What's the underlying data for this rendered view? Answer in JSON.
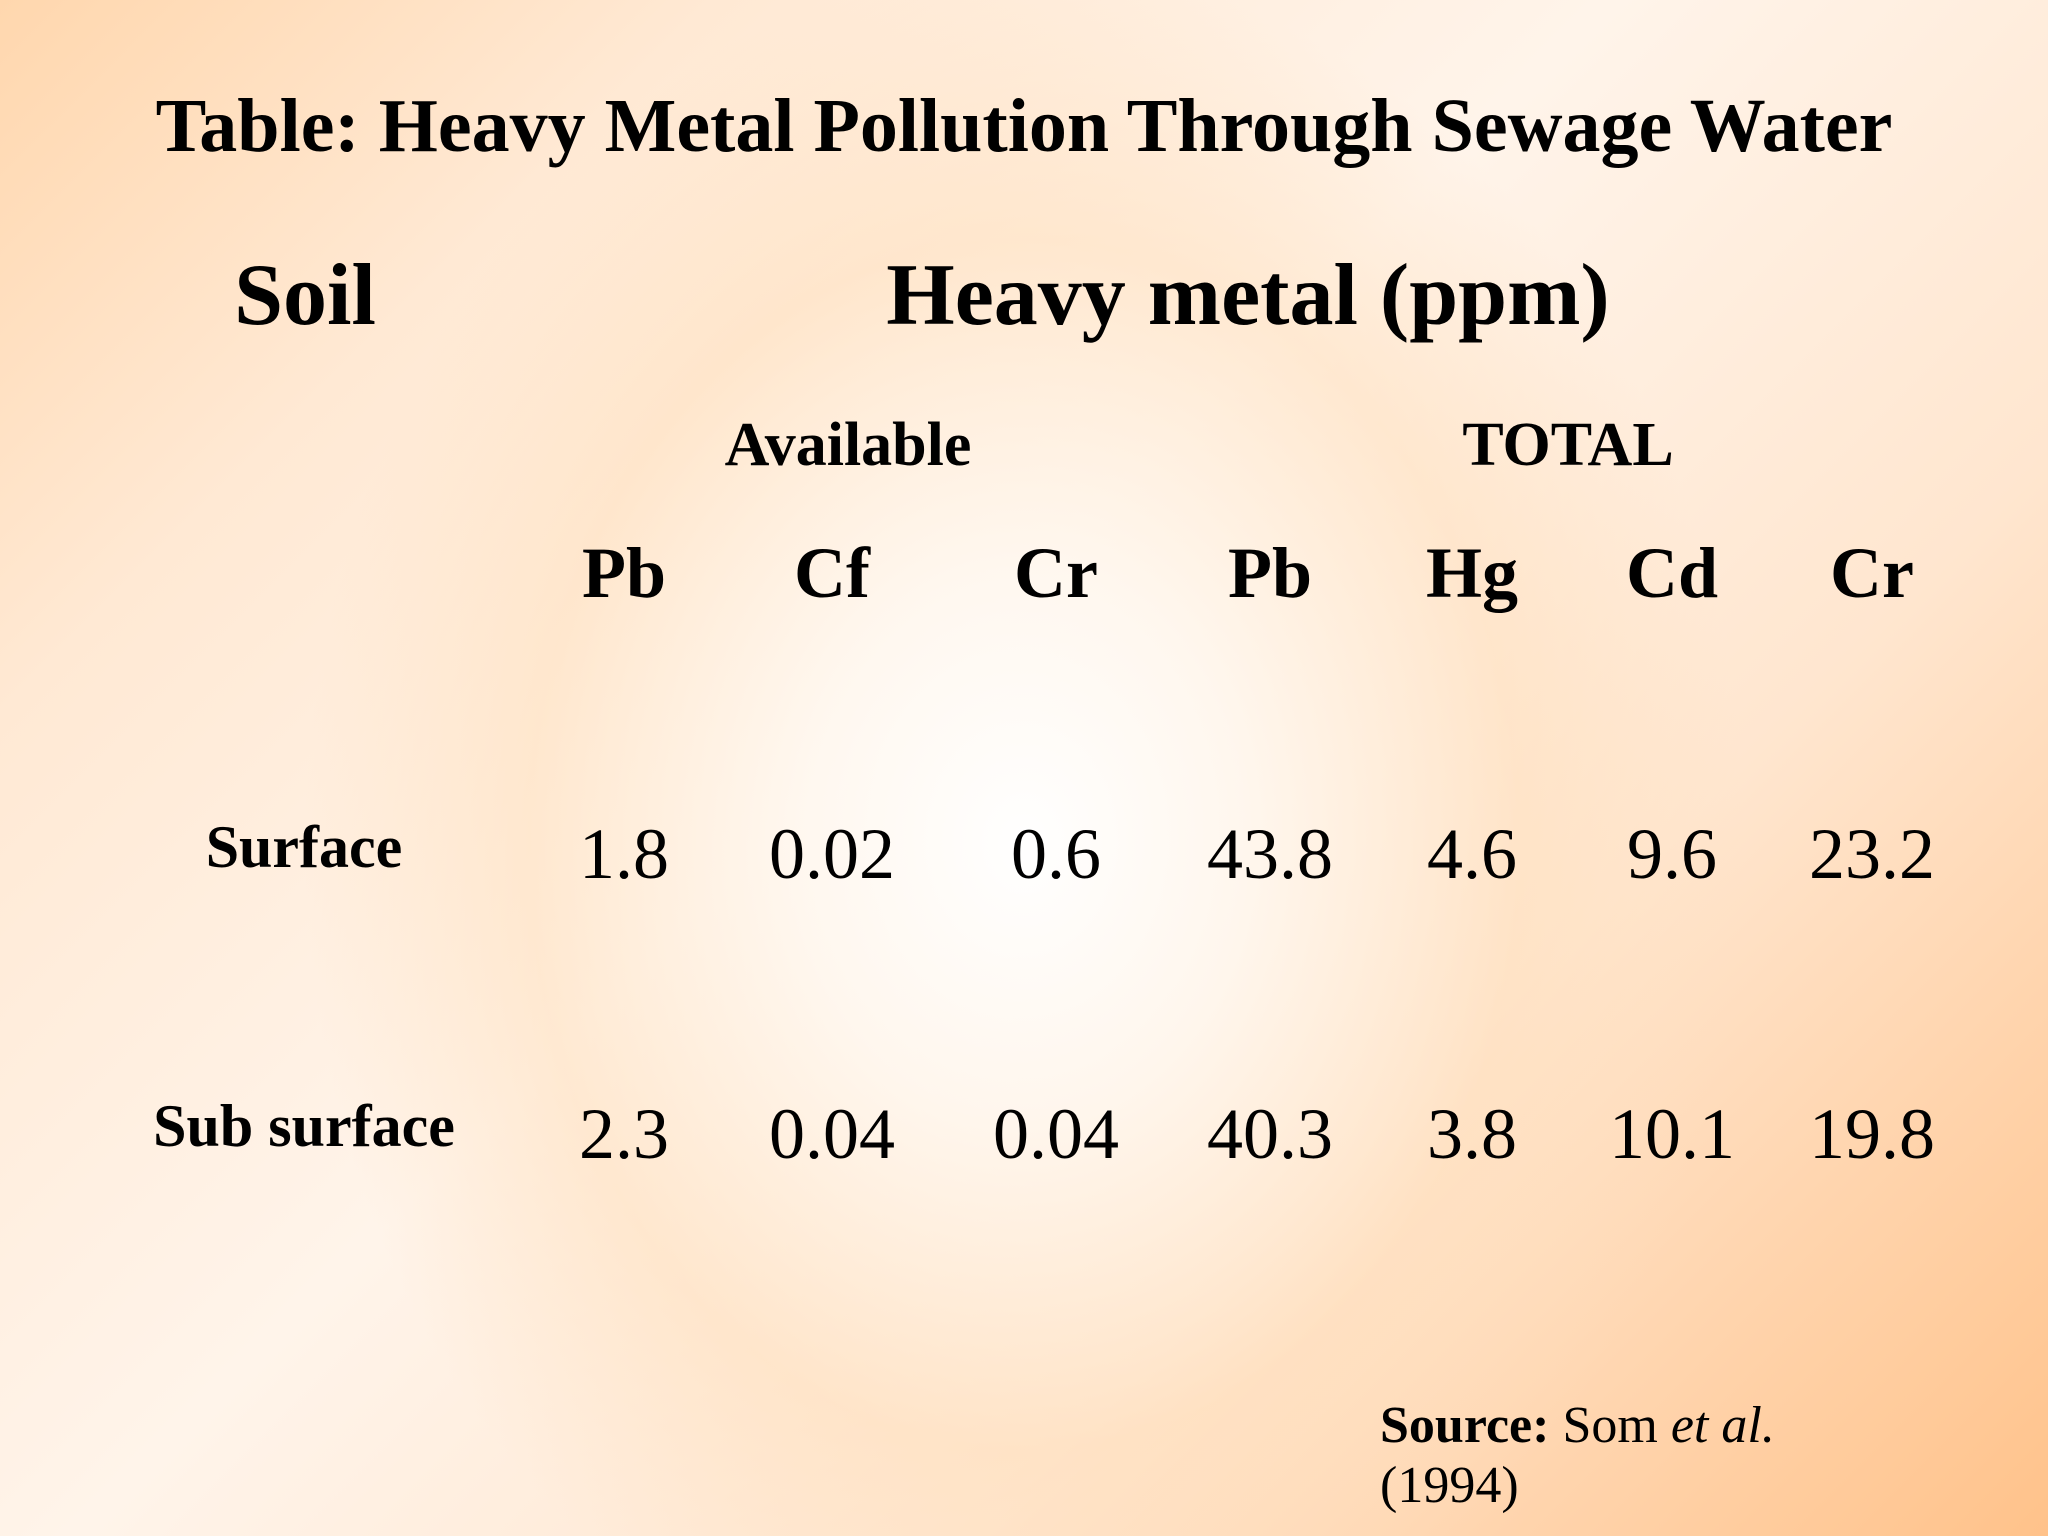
{
  "title": "Table: Heavy Metal Pollution Through Sewage Water",
  "table": {
    "soil_header": "Soil",
    "metal_header": "Heavy metal (ppm)",
    "groups": [
      "Available",
      "TOTAL"
    ],
    "metals": [
      "Pb",
      "Cf",
      "Cr",
      "Pb",
      "Hg",
      "Cd",
      "Cr"
    ],
    "rows": [
      {
        "label": "Surface",
        "values": [
          "1.8",
          "0.02",
          "0.6",
          "43.8",
          "4.6",
          "9.6",
          "23.2"
        ]
      },
      {
        "label": "Sub surface",
        "values": [
          "2.3",
          "0.04",
          "0.04",
          "40.3",
          "3.8",
          "10.1",
          "19.8"
        ]
      }
    ]
  },
  "source": {
    "label": "Source:",
    "author": "Som",
    "etal": "et al.",
    "year": "(1994)"
  }
}
